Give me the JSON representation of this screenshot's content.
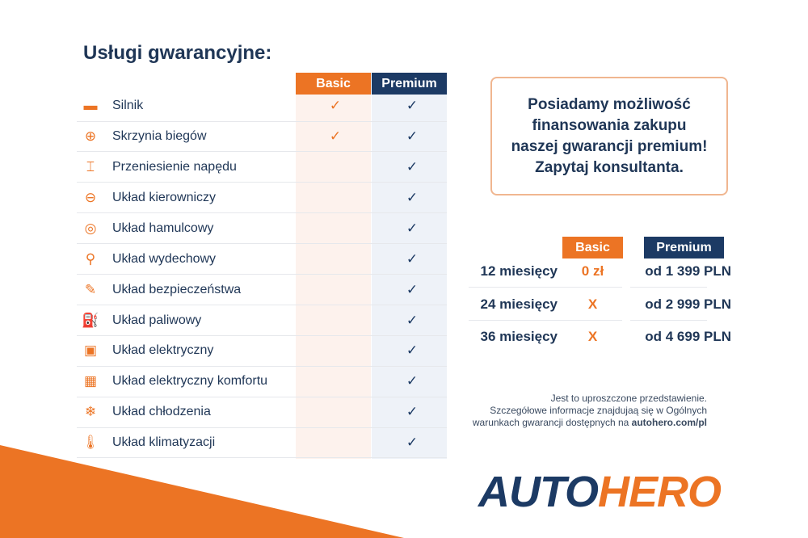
{
  "title": "Usługi gwarancyjne:",
  "coverage": {
    "headers": {
      "basic": "Basic",
      "premium": "Premium"
    },
    "check": "✓",
    "rows": [
      {
        "icon": "engine-icon",
        "glyph": "▬",
        "label": "Silnik",
        "basic": true,
        "premium": true
      },
      {
        "icon": "gearbox-icon",
        "glyph": "⊕",
        "label": "Skrzynia biegów",
        "basic": true,
        "premium": true
      },
      {
        "icon": "drivetrain-icon",
        "glyph": "⌶",
        "label": "Przeniesienie napędu",
        "basic": false,
        "premium": true
      },
      {
        "icon": "steering-wheel-icon",
        "glyph": "⊖",
        "label": "Układ kierowniczy",
        "basic": false,
        "premium": true
      },
      {
        "icon": "brake-disc-icon",
        "glyph": "◎",
        "label": "Układ hamulcowy",
        "basic": false,
        "premium": true
      },
      {
        "icon": "exhaust-icon",
        "glyph": "⚲",
        "label": "Układ wydechowy",
        "basic": false,
        "premium": true
      },
      {
        "icon": "airbag-icon",
        "glyph": "✎",
        "label": "Układ bezpieczeństwa",
        "basic": false,
        "premium": true
      },
      {
        "icon": "fuel-pump-icon",
        "glyph": "⛽",
        "label": "Układ paliwowy",
        "basic": false,
        "premium": true
      },
      {
        "icon": "battery-icon",
        "glyph": "▣",
        "label": "Układ elektryczny",
        "basic": false,
        "premium": true
      },
      {
        "icon": "chip-icon",
        "glyph": "▦",
        "label": "Układ elektryczny komfortu",
        "basic": false,
        "premium": true
      },
      {
        "icon": "snowflake-icon",
        "glyph": "❄",
        "label": "Układ chłodzenia",
        "basic": false,
        "premium": true
      },
      {
        "icon": "thermometer-icon",
        "glyph": "🌡",
        "label": "Układ klimatyzacji",
        "basic": false,
        "premium": true
      }
    ]
  },
  "promo": "Posiadamy możliwość\nfinansowania zakupu\nnaszej gwarancji premium!\nZapytaj konsultanta.",
  "pricing": {
    "headers": {
      "basic": "Basic",
      "premium": "Premium"
    },
    "rows": [
      {
        "period": "12 miesięcy",
        "basic": "0 zł",
        "premium": "od 1 399 PLN"
      },
      {
        "period": "24 miesięcy",
        "basic": "X",
        "premium": "od 2 999 PLN"
      },
      {
        "period": "36 miesięcy",
        "basic": "X",
        "premium": "od 4 699 PLN"
      }
    ]
  },
  "note": {
    "line1": "Jest to uproszczone przedstawienie.",
    "line2": "Szczegółowe informacje znajdujaą się w Ogólnych",
    "line3": "warunkach gwarancji dostępnych na ",
    "link": "autohero.com/pl"
  },
  "logo": {
    "part1": "AUTO",
    "part2": "HERO"
  },
  "colors": {
    "orange": "#ec7424",
    "navy": "#1c3a64"
  }
}
